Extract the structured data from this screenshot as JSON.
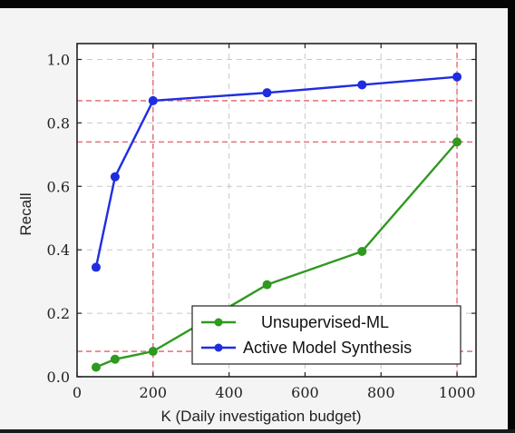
{
  "chart_data": {
    "type": "line",
    "xlabel": "K (Daily investigation budget)",
    "ylabel": "Recall",
    "xlim": [
      0,
      1050
    ],
    "ylim": [
      0,
      1.05
    ],
    "xticks": [
      "0",
      "200",
      "400",
      "600",
      "800",
      "1000"
    ],
    "yticks": [
      "0.0",
      "0.2",
      "0.4",
      "0.6",
      "0.8",
      "1.0"
    ],
    "grid": true,
    "legend_position": "bottom-right",
    "series": [
      {
        "name": "Unsupervised-ML",
        "color": "#2e9a1e",
        "x": [
          50,
          100,
          200,
          500,
          750,
          1000
        ],
        "y": [
          0.03,
          0.055,
          0.08,
          0.29,
          0.395,
          0.74
        ]
      },
      {
        "name": "Active Model Synthesis",
        "color": "#1f2de0",
        "x": [
          50,
          100,
          200,
          500,
          750,
          1000
        ],
        "y": [
          0.345,
          0.63,
          0.87,
          0.895,
          0.92,
          0.945
        ]
      }
    ],
    "reference_lines": {
      "color": "#e0606a",
      "horizontal": [
        0.87,
        0.74,
        0.08
      ],
      "vertical": [
        200,
        1000
      ]
    }
  }
}
